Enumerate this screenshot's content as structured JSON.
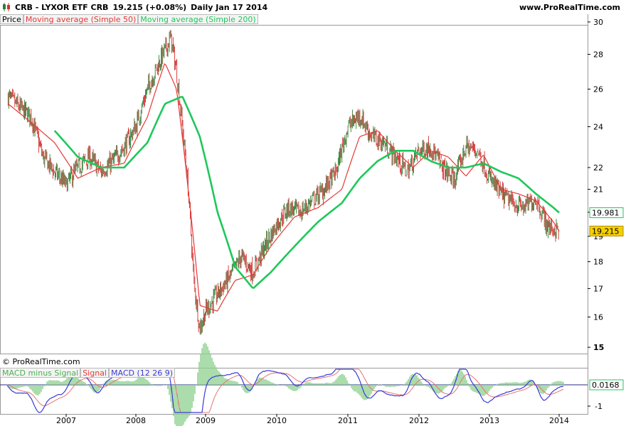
{
  "header": {
    "symbol_line": "CRB - LYXOR ETF CRB",
    "last": "19.215 (+0.08%)",
    "period": "Daily  Jan 17 2014",
    "site": "www.ProRealTime.com"
  },
  "legend": {
    "price": "Price",
    "ma50": "Moving average (Simple 50)",
    "ma200": "Moving average (Simple 200)"
  },
  "copyright": "© ProRealTime.com",
  "macd_legend": {
    "hist": "MACD minus Signal",
    "signal": "Signal",
    "macd": "MACD (12 26 9)"
  },
  "colors": {
    "up": "#2e7d32",
    "down": "#d32f2f",
    "ma50": "#e53935",
    "ma200": "#1ec85a",
    "macd": "#3b3bd6",
    "signal": "#e57373",
    "hist": "#8fd18f",
    "price_label_bg": "#f5d000"
  },
  "chart_data": [
    {
      "type": "line",
      "title": "CRB - LYXOR ETF CRB",
      "x_tick_labels": [
        "2007",
        "2008",
        "2009",
        "2010",
        "2011",
        "2012",
        "2013",
        "2014"
      ],
      "y_tick_labels": [
        15,
        16,
        17,
        18,
        19,
        20,
        21,
        22,
        24,
        26,
        28,
        30
      ],
      "y_scale": "log",
      "ylim": [
        14.8,
        30.5
      ],
      "last_price": 19.215,
      "ma200_last": 19.981,
      "series": [
        {
          "name": "Price",
          "x": [
            "2006-03",
            "2006-05",
            "2006-07",
            "2006-09",
            "2006-11",
            "2007-01",
            "2007-03",
            "2007-05",
            "2007-07",
            "2007-09",
            "2007-11",
            "2008-01",
            "2008-03",
            "2008-05",
            "2008-07",
            "2008-08",
            "2008-09",
            "2008-10",
            "2008-11",
            "2008-12",
            "2009-01",
            "2009-03",
            "2009-05",
            "2009-07",
            "2009-09",
            "2009-11",
            "2010-01",
            "2010-03",
            "2010-05",
            "2010-07",
            "2010-09",
            "2010-11",
            "2011-01",
            "2011-03",
            "2011-05",
            "2011-07",
            "2011-09",
            "2011-11",
            "2012-01",
            "2012-03",
            "2012-05",
            "2012-07",
            "2012-09",
            "2012-11",
            "2013-01",
            "2013-03",
            "2013-05",
            "2013-07",
            "2013-09",
            "2013-11",
            "2014-01"
          ],
          "values": [
            25.6,
            25.0,
            24.5,
            22.5,
            21.8,
            21.2,
            22.0,
            22.5,
            21.8,
            22.3,
            23.0,
            24.0,
            26.0,
            27.5,
            29.0,
            27.0,
            24.0,
            21.0,
            17.2,
            15.6,
            16.2,
            16.8,
            17.4,
            18.2,
            17.6,
            18.6,
            19.5,
            20.2,
            20.0,
            20.5,
            21.0,
            21.8,
            24.0,
            24.6,
            23.5,
            23.2,
            22.5,
            21.8,
            22.8,
            23.0,
            22.0,
            21.4,
            23.0,
            22.8,
            21.5,
            20.8,
            20.4,
            20.2,
            20.6,
            19.4,
            19.215
          ]
        },
        {
          "name": "Moving average (Simple 50)",
          "x": [
            "2006-03",
            "2006-07",
            "2006-11",
            "2007-03",
            "2007-07",
            "2007-11",
            "2008-03",
            "2008-06",
            "2008-08",
            "2008-10",
            "2008-12",
            "2009-03",
            "2009-06",
            "2009-09",
            "2009-12",
            "2010-04",
            "2010-08",
            "2010-12",
            "2011-03",
            "2011-06",
            "2011-09",
            "2011-12",
            "2012-03",
            "2012-06",
            "2012-09",
            "2012-12",
            "2013-03",
            "2013-06",
            "2013-09",
            "2013-12",
            "2014-01"
          ],
          "values": [
            25.2,
            24.2,
            23.2,
            21.5,
            22.0,
            22.2,
            24.5,
            27.5,
            26.0,
            21.0,
            16.4,
            16.2,
            17.3,
            17.5,
            18.6,
            19.8,
            20.2,
            21.0,
            23.5,
            23.8,
            22.8,
            22.0,
            22.8,
            22.5,
            21.6,
            22.6,
            21.0,
            20.8,
            20.5,
            19.6,
            19.2
          ]
        },
        {
          "name": "Moving average (Simple 200)",
          "x": [
            "2006-11",
            "2007-03",
            "2007-07",
            "2007-11",
            "2008-03",
            "2008-06",
            "2008-09",
            "2008-12",
            "2009-03",
            "2009-06",
            "2009-09",
            "2009-12",
            "2010-04",
            "2010-08",
            "2010-12",
            "2011-03",
            "2011-06",
            "2011-09",
            "2011-12",
            "2012-03",
            "2012-06",
            "2012-09",
            "2012-12",
            "2013-03",
            "2013-06",
            "2013-09",
            "2013-12",
            "2014-01"
          ],
          "values": [
            23.8,
            22.5,
            22.0,
            22.0,
            23.2,
            25.2,
            25.6,
            23.5,
            20.0,
            17.8,
            17.0,
            17.6,
            18.6,
            19.6,
            20.4,
            21.5,
            22.3,
            22.8,
            22.8,
            22.3,
            22.0,
            22.0,
            22.2,
            21.8,
            21.5,
            20.8,
            20.2,
            19.981
          ]
        }
      ]
    },
    {
      "type": "line",
      "title": "MACD (12 26 9)",
      "y_tick_labels": [
        "-1"
      ],
      "last_value": 0.0168,
      "series": [
        {
          "name": "MACD (12 26 9)"
        },
        {
          "name": "Signal"
        },
        {
          "name": "MACD minus Signal"
        }
      ]
    }
  ]
}
